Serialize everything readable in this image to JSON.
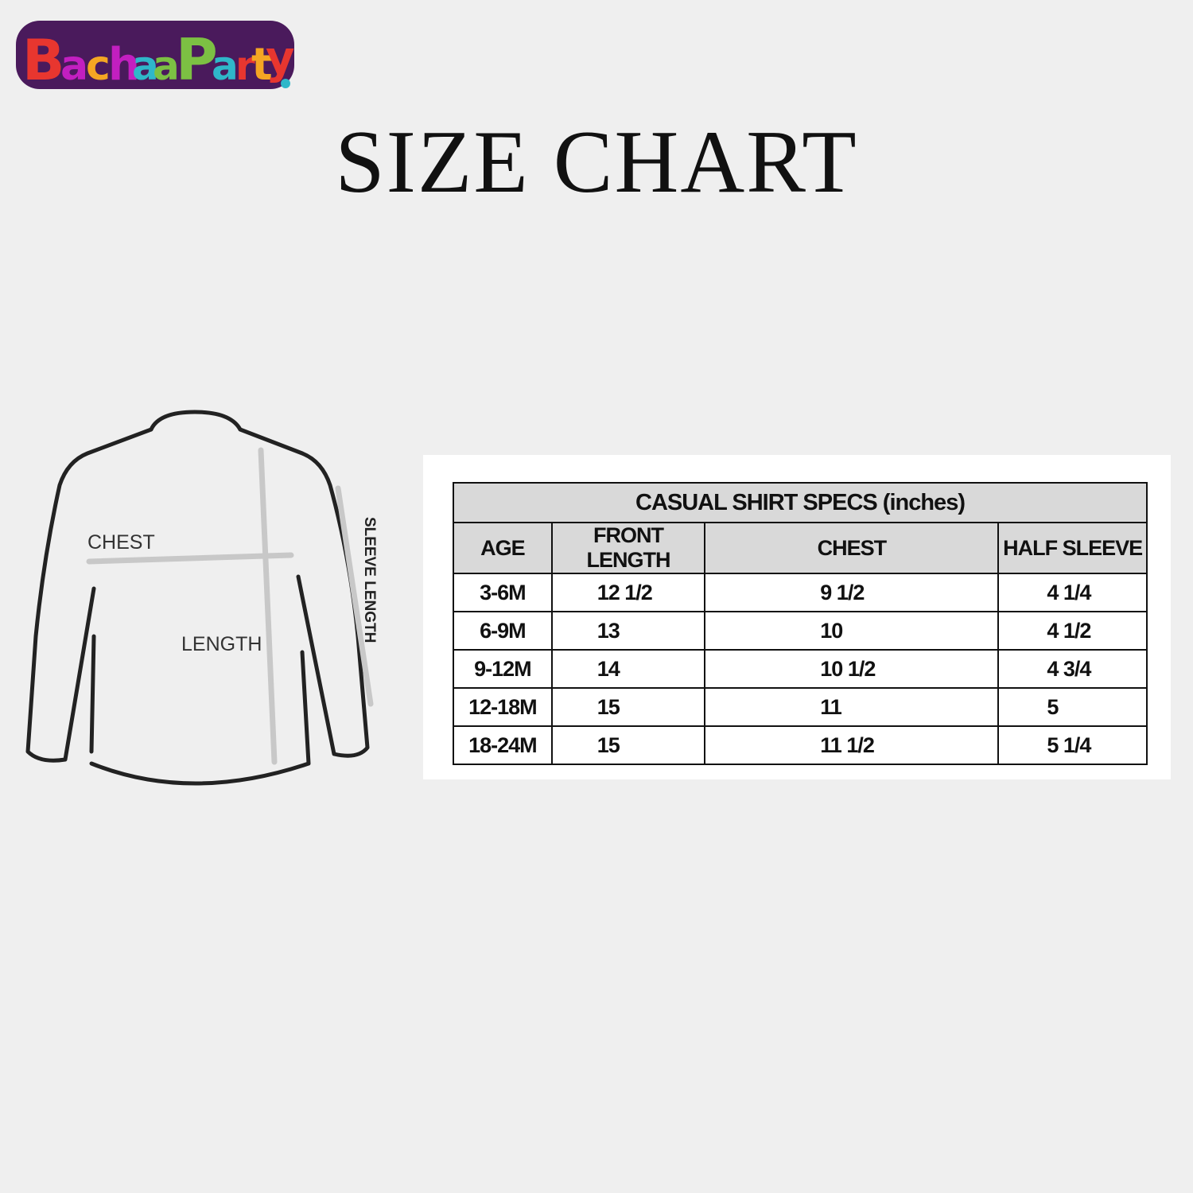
{
  "brand": {
    "logo_text": "BachaaParty",
    "colors": [
      "#e8362f",
      "#c21fc0",
      "#f5a623",
      "#2fb7c9",
      "#7cc043",
      "#4a1a5c"
    ]
  },
  "title": "SIZE CHART",
  "diagram": {
    "labels": {
      "chest": "CHEST",
      "length": "LENGTH",
      "sleeve": "SLEEVE LENGTH"
    }
  },
  "table": {
    "caption": "CASUAL SHIRT SPECS (inches)",
    "headers": [
      "AGE",
      "FRONT LENGTH",
      "CHEST",
      "HALF SLEEVE"
    ],
    "rows": [
      [
        "3-6M",
        "12 1/2",
        "9 1/2",
        "4 1/4"
      ],
      [
        "6-9M",
        "13",
        "10",
        "4 1/2"
      ],
      [
        "9-12M",
        "14",
        "10 1/2",
        "4 3/4"
      ],
      [
        "12-18M",
        "15",
        "11",
        "5"
      ],
      [
        "18-24M",
        "15",
        "11 1/2",
        "5 1/4"
      ]
    ]
  }
}
